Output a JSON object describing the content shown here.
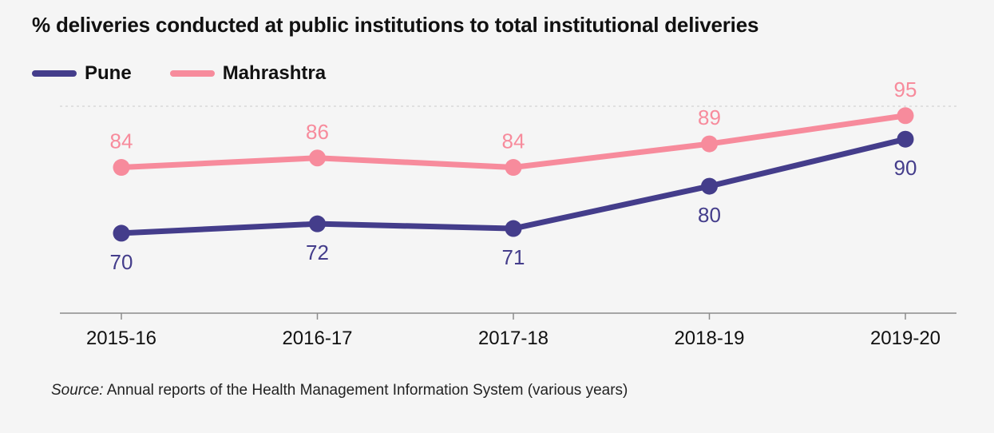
{
  "title": "% deliveries conducted at public institutions to total institutional deliveries",
  "legend": [
    {
      "name": "Pune",
      "color": "#443d8b"
    },
    {
      "name": "Mahrashtra",
      "color": "#f78b9c"
    }
  ],
  "source": {
    "label": "Source:",
    "text": "Annual reports of the Health Management Information System (various years)"
  },
  "chart_data": {
    "type": "line",
    "categories": [
      "2015-16",
      "2016-17",
      "2017-18",
      "2018-19",
      "2019-20"
    ],
    "series": [
      {
        "name": "Pune",
        "color": "#443d8b",
        "values": [
          70,
          72,
          71,
          80,
          90
        ],
        "label_position": "below"
      },
      {
        "name": "Mahrashtra",
        "color": "#f78b9c",
        "values": [
          84,
          86,
          84,
          89,
          95
        ],
        "label_position": "above"
      }
    ],
    "ylim": [
      53,
      97
    ],
    "grid": "single dashed line at top",
    "legend_placement": "top-left",
    "xlabel": "",
    "ylabel": ""
  }
}
